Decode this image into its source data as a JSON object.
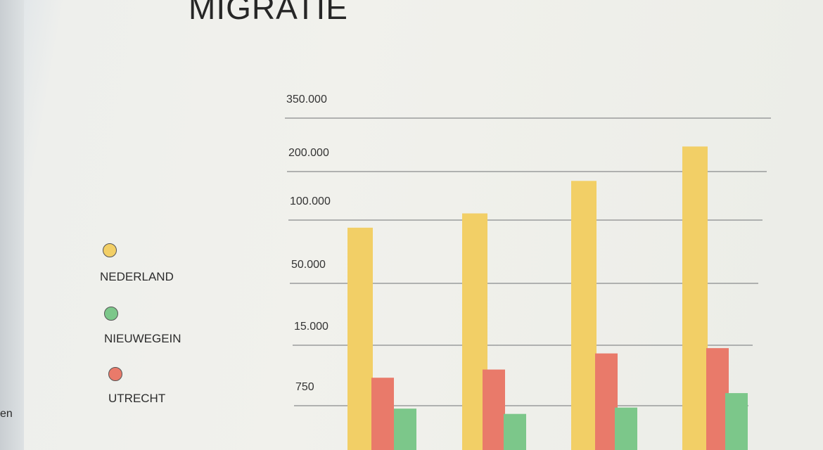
{
  "edge_text": "en",
  "chart_data": {
    "type": "bar",
    "title": "MIGRATIE",
    "xlabel": "",
    "ylabel": "",
    "y_ticks": [
      "350.000",
      "200.000",
      "100.000",
      "50.000",
      "15.000",
      "750"
    ],
    "y_tick_values": [
      350000,
      200000,
      100000,
      50000,
      15000,
      750
    ],
    "categories": [
      "",
      "",
      "",
      ""
    ],
    "series": [
      {
        "name": "NEDERLAND",
        "color": "#f2cf66",
        "values": [
          92000,
          110000,
          175000,
          260000
        ]
      },
      {
        "name": "UTRECHT",
        "color": "#e97a6a",
        "values": [
          3000,
          4500,
          10000,
          13000
        ]
      },
      {
        "name": "NIEUWEGEIN",
        "color": "#7cc78a",
        "values": [
          600,
          400,
          650,
          1400
        ]
      }
    ],
    "grid": true,
    "legend_placement": "left",
    "legend_order": [
      "NEDERLAND",
      "NIEUWEGEIN",
      "UTRECHT"
    ]
  }
}
